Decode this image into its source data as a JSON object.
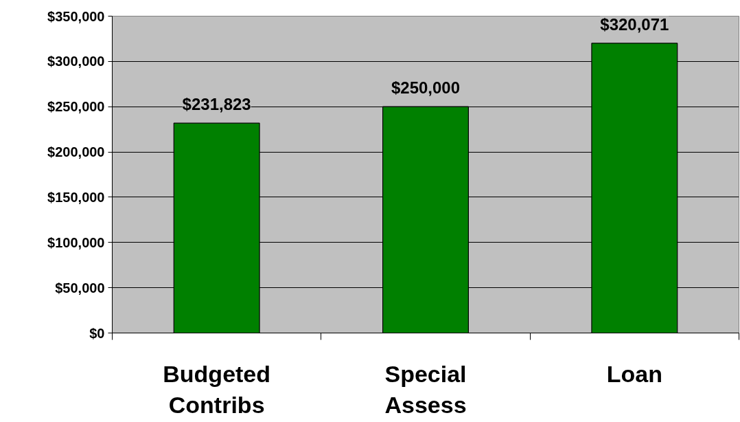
{
  "chart_data": {
    "type": "bar",
    "categories": [
      "Budgeted\nContribs",
      "Special\nAssess",
      "Loan"
    ],
    "values": [
      231823,
      250000,
      320071
    ],
    "color": "#008000",
    "value_labels": [
      "$231,823",
      "$250,000",
      "$320,071"
    ],
    "ylim": [
      0,
      350000
    ],
    "yticks": [
      {
        "value": 0,
        "label": "$0"
      },
      {
        "value": 50000,
        "label": "$50,000"
      },
      {
        "value": 100000,
        "label": "$100,000"
      },
      {
        "value": 150000,
        "label": "$150,000"
      },
      {
        "value": 200000,
        "label": "$200,000"
      },
      {
        "value": 250000,
        "label": "$250,000"
      },
      {
        "value": 300000,
        "label": "$300,000"
      },
      {
        "value": 350000,
        "label": "$350,000"
      }
    ],
    "grid": "y"
  }
}
